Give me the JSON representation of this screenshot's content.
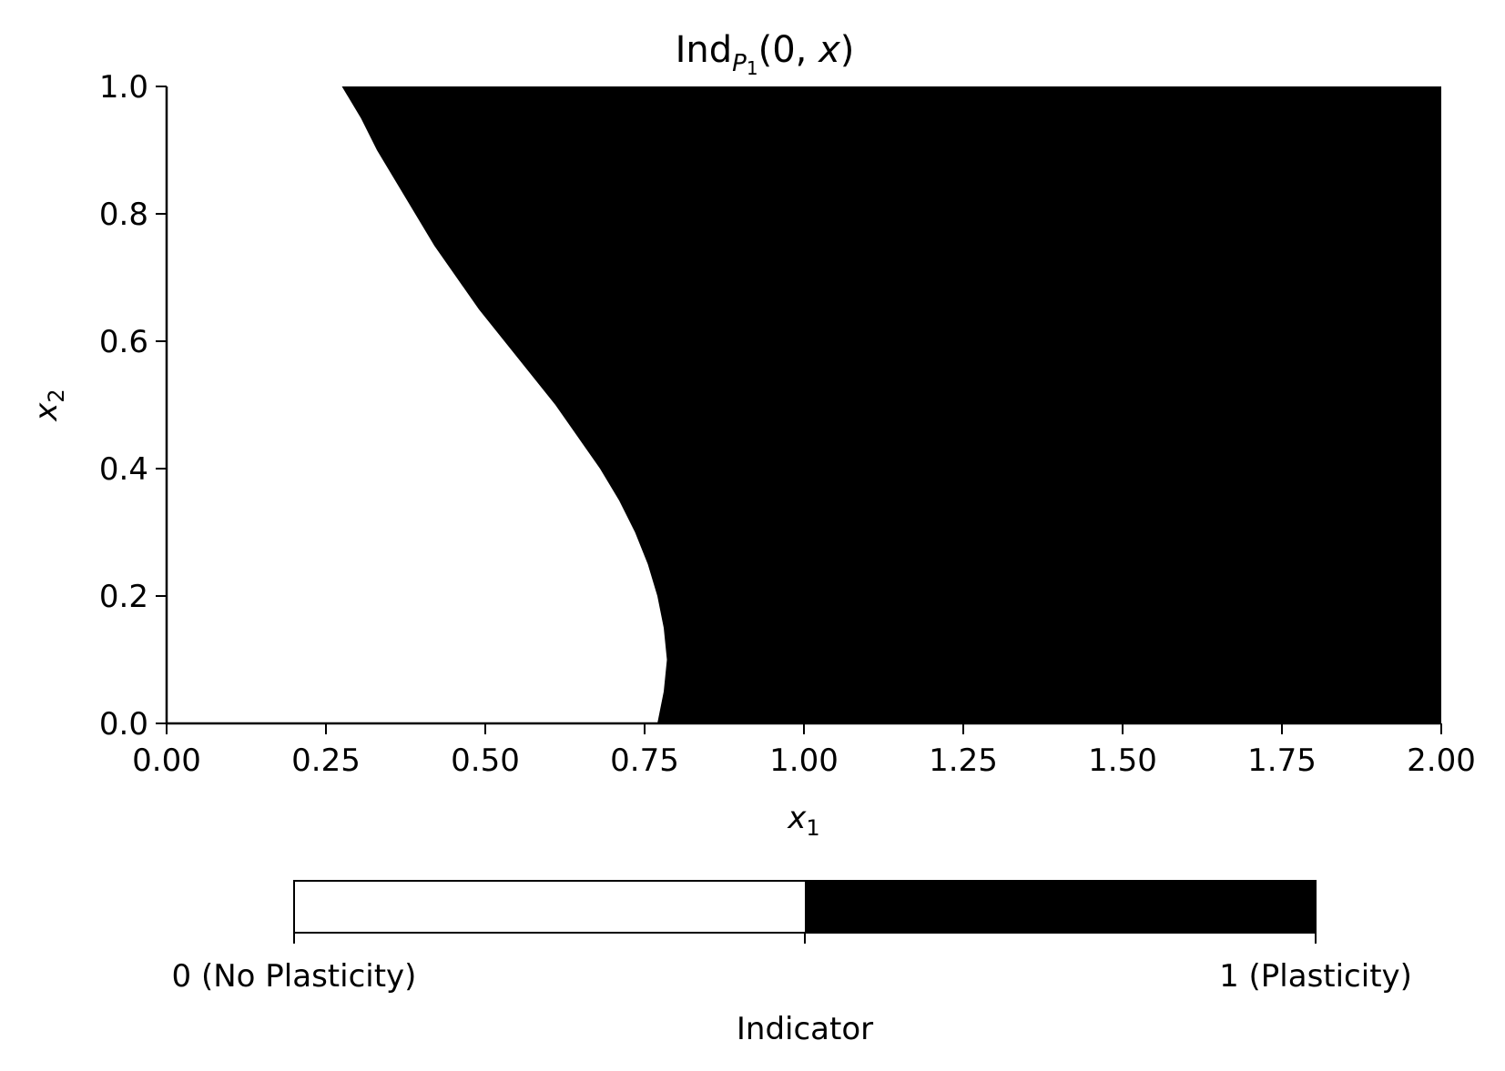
{
  "chart_data": {
    "type": "heatmap",
    "title": {
      "base": "Ind",
      "sub_letter": "P",
      "sub_index": "1",
      "args_open": "(0, ",
      "args_var": "x",
      "args_close": ")"
    },
    "xlabel": {
      "var": "x",
      "sub": "1"
    },
    "ylabel": {
      "var": "x",
      "sub": "2"
    },
    "xlim": [
      0,
      2
    ],
    "ylim": [
      0,
      1
    ],
    "xticks": [
      "0.00",
      "0.25",
      "0.50",
      "0.75",
      "1.00",
      "1.25",
      "1.50",
      "1.75",
      "2.00"
    ],
    "yticks": [
      "0.0",
      "0.2",
      "0.4",
      "0.6",
      "0.8",
      "1.0"
    ],
    "grid": false,
    "colormap": {
      "0": "#ffffff",
      "1": "#000000"
    },
    "boundary": {
      "description_of_region": "value 0 for x1 left of boundary, value 1 to the right",
      "points": [
        {
          "x2": 0.0,
          "x1": 0.77
        },
        {
          "x2": 0.05,
          "x1": 0.78
        },
        {
          "x2": 0.1,
          "x1": 0.785
        },
        {
          "x2": 0.15,
          "x1": 0.78
        },
        {
          "x2": 0.2,
          "x1": 0.77
        },
        {
          "x2": 0.25,
          "x1": 0.755
        },
        {
          "x2": 0.3,
          "x1": 0.735
        },
        {
          "x2": 0.35,
          "x1": 0.71
        },
        {
          "x2": 0.4,
          "x1": 0.68
        },
        {
          "x2": 0.45,
          "x1": 0.645
        },
        {
          "x2": 0.5,
          "x1": 0.61
        },
        {
          "x2": 0.55,
          "x1": 0.57
        },
        {
          "x2": 0.6,
          "x1": 0.53
        },
        {
          "x2": 0.65,
          "x1": 0.49
        },
        {
          "x2": 0.7,
          "x1": 0.455
        },
        {
          "x2": 0.75,
          "x1": 0.42
        },
        {
          "x2": 0.8,
          "x1": 0.39
        },
        {
          "x2": 0.85,
          "x1": 0.36
        },
        {
          "x2": 0.9,
          "x1": 0.33
        },
        {
          "x2": 0.95,
          "x1": 0.305
        },
        {
          "x2": 1.0,
          "x1": 0.275
        }
      ]
    },
    "colorbar": {
      "label": "Indicator",
      "tick_labels": [
        "0 (No Plasticity)",
        "1 (Plasticity)"
      ],
      "levels": [
        0,
        1
      ]
    }
  }
}
